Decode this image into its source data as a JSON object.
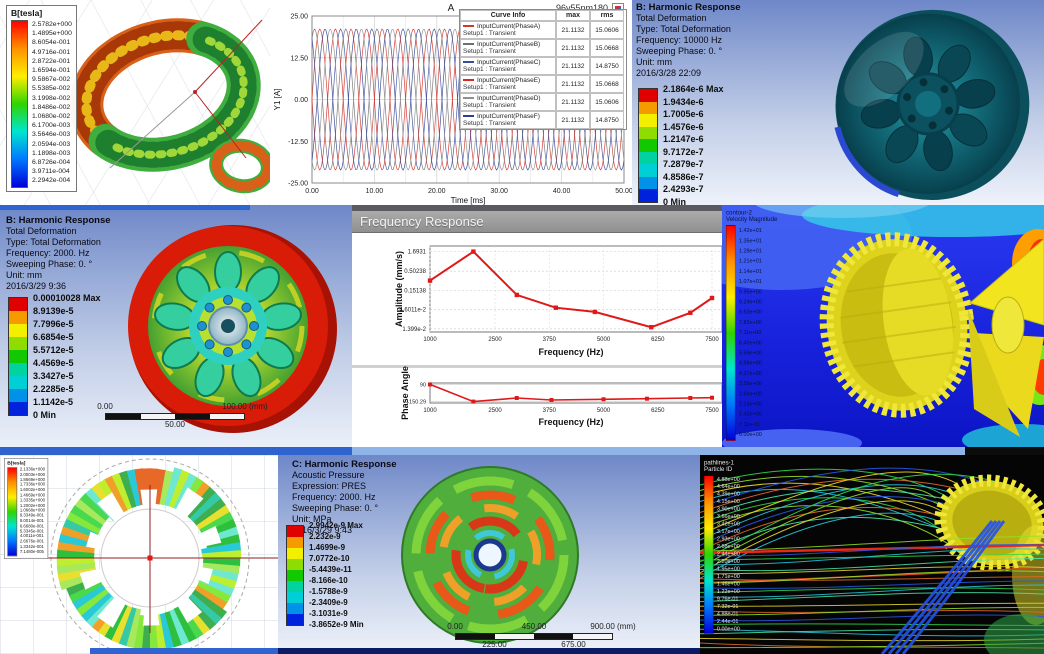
{
  "colors": {
    "jet": [
      "#ff0000",
      "#ff9200",
      "#ffee00",
      "#2fd400",
      "#00e5d0",
      "#0077ff",
      "#0000d8"
    ],
    "ansysBands": [
      "#e10000",
      "#f59b00",
      "#f2ef00",
      "#8fdc00",
      "#12c800",
      "#00d2a0",
      "#00cfd6",
      "#0092e8",
      "#0022dc"
    ],
    "accentBlue": "#2f63d0",
    "plotRed": "#e01818"
  },
  "panelA": {
    "legendTitle": "B[tesla]",
    "legendValues": [
      "2.5782e+000",
      "1.4895e+000",
      "8.6054e-001",
      "4.9716e-001",
      "2.8722e-001",
      "1.6594e-001",
      "9.5867e-002",
      "5.5385e-002",
      "3.1998e-002",
      "1.8486e-002",
      "1.0680e-002",
      "6.1700e-003",
      "3.5646e-003",
      "2.0594e-003",
      "1.1898e-003",
      "6.8726e-004",
      "3.9711e-004",
      "2.2942e-004"
    ]
  },
  "panelB": {
    "title": "A",
    "corner": "96v55nm180",
    "xlabel": "Time [ms]",
    "ylabel": "Y1 [A]",
    "yticks": [
      "25.00",
      "12.50",
      "0.00",
      "-12.50",
      "-25.00"
    ],
    "xticks": [
      "0.00",
      "10.00",
      "20.00",
      "30.00",
      "40.00",
      "50.00"
    ],
    "legendHeader": [
      "Curve Info",
      "max",
      "rms"
    ],
    "legendRows": [
      {
        "name": "InputCurrent(PhaseA)",
        "setup": "Setup1 : Transient",
        "max": "21.1132",
        "rms": "15.0606",
        "color": "#cc3b2a"
      },
      {
        "name": "InputCurrent(PhaseB)",
        "setup": "Setup1 : Transient",
        "max": "21.1132",
        "rms": "15.0668",
        "color": "#6f6f6f"
      },
      {
        "name": "InputCurrent(PhaseC)",
        "setup": "Setup1 : Transient",
        "max": "21.1132",
        "rms": "14.8750",
        "color": "#3a4e9e"
      },
      {
        "name": "InputCurrent(PhaseE)",
        "setup": "Setup1 : Transient",
        "max": "21.1132",
        "rms": "15.0668",
        "color": "#d42a2a"
      },
      {
        "name": "InputCurrent(PhaseD)",
        "setup": "Setup1 : Transient",
        "max": "21.1132",
        "rms": "15.0606",
        "color": "#8f8f8f"
      },
      {
        "name": "InputCurrent(PhaseF)",
        "setup": "Setup1 : Transient",
        "max": "21.1132",
        "rms": "14.8750",
        "color": "#2f3f8f"
      }
    ]
  },
  "panelC": {
    "header": [
      "B: Harmonic Response",
      "Total Deformation",
      "Type: Total Deformation",
      "Frequency: 10000 Hz",
      "Sweeping Phase: 0. °",
      "Unit: mm",
      "2016/3/28 22:09"
    ],
    "legendValues": [
      "2.1864e-6 Max",
      "1.9434e-6",
      "1.7005e-6",
      "1.4576e-6",
      "1.2147e-6",
      "9.7172e-7",
      "7.2879e-7",
      "4.8586e-7",
      "2.4293e-7",
      "0 Min"
    ]
  },
  "panelD": {
    "header": [
      "B: Harmonic Response",
      "Total Deformation",
      "Type: Total Deformation",
      "Frequency: 2000. Hz",
      "Sweeping Phase: 0. °",
      "Unit: mm",
      "2016/3/29 9:36"
    ],
    "legendValues": [
      "0.00010028 Max",
      "8.9139e-5",
      "7.7996e-5",
      "6.6854e-5",
      "5.5712e-5",
      "4.4569e-5",
      "3.3427e-5",
      "2.2285e-5",
      "1.1142e-5",
      "0 Min"
    ],
    "rulerTop": [
      "0.00",
      "100.00 (mm)"
    ],
    "rulerBottom": [
      "50.00"
    ]
  },
  "panelE": {
    "title": "Frequency Response",
    "amp": {
      "ylabel": "Amplitude (mm/s)",
      "xlabel": "Frequency (Hz)",
      "yticks": [
        "1.6931",
        "0.50238",
        "0.15138",
        "4.6011e-2",
        "1.399e-2"
      ],
      "xticks": [
        "1000",
        "2500",
        "3750",
        "5000",
        "6250",
        "7500"
      ]
    },
    "phase": {
      "ylabel": "Phase Angle",
      "xlabel": "Frequency (Hz)",
      "yticks": [
        "90",
        "-150.29"
      ],
      "xticks": [
        "1000",
        "2500",
        "3750",
        "5000",
        "6250",
        "7500"
      ]
    }
  },
  "panelF": {
    "legendTitle": [
      "contour-2",
      "Velocity Magnitude"
    ],
    "legendValues": [
      "1.42e+01",
      "1.35e+01",
      "1.28e+01",
      "1.21e+01",
      "1.14e+01",
      "1.07e+01",
      "9.96e+00",
      "9.24e+00",
      "8.53e+00",
      "7.82e+00",
      "7.11e+00",
      "6.40e+00",
      "5.69e+00",
      "4.98e+00",
      "4.27e+00",
      "3.56e+00",
      "2.84e+00",
      "2.13e+00",
      "1.42e+00",
      "7.11e-01",
      "0.00e+00"
    ]
  },
  "panelG": {
    "legendTitle": "B[tesla]",
    "legendValues": [
      "2.1336e+000",
      "2.0003e+000",
      "1.8669e+000",
      "1.7336e+000",
      "1.6002e+000",
      "1.4669e+000",
      "1.3335e+000",
      "1.2002e+000",
      "1.0668e+000",
      "9.3349e-001",
      "8.0014e-001",
      "6.6680e-001",
      "5.3345e-001",
      "4.0011e-001",
      "2.6676e-001",
      "1.3342e-001",
      "7.1480e-005"
    ]
  },
  "panelH": {
    "header": [
      "C: Harmonic Response",
      "Acoustic Pressure",
      "Expression: PRES",
      "Frequency: 2000. Hz",
      "Sweeping Phase: 0. °",
      "Unit: MPa",
      "2016/3/29 9:43"
    ],
    "legendValues": [
      "2.9942e-9 Max",
      "2.232e-9",
      "1.4699e-9",
      "7.0772e-10",
      "-5.4439e-11",
      "-8.166e-10",
      "-1.5788e-9",
      "-2.3409e-9",
      "-3.1031e-9",
      "-3.8652e-9 Min"
    ],
    "rulerTop": [
      "0.00",
      "450.00",
      "900.00 (mm)"
    ],
    "rulerBottom": [
      "225.00",
      "675.00"
    ]
  },
  "panelI": {
    "legendTitle": [
      "pathlines-1",
      "Particle ID"
    ],
    "legendValues": [
      "4.88e+00",
      "4.64e+00",
      "4.39e+00",
      "4.15e+00",
      "3.90e+00",
      "3.66e+00",
      "3.42e+00",
      "3.17e+00",
      "2.93e+00",
      "2.68e+00",
      "2.44e+00",
      "2.20e+00",
      "1.95e+00",
      "1.71e+00",
      "1.46e+00",
      "1.22e+00",
      "9.76e-01",
      "7.32e-01",
      "4.88e-01",
      "2.44e-01",
      "0.00e+00"
    ]
  },
  "chart_data": [
    {
      "id": "input-currents",
      "type": "line",
      "title": "A",
      "xlabel": "Time [ms]",
      "ylabel": "Y1 [A]",
      "xlim": [
        0,
        50
      ],
      "ylim": [
        -25,
        25
      ],
      "waveform": "sine",
      "period_ms": 5,
      "amplitude": 21.1132,
      "legend_position": "right",
      "series": [
        {
          "name": "InputCurrent(PhaseA)",
          "phase_deg": 0,
          "max": 21.1132,
          "rms": 15.0606
        },
        {
          "name": "InputCurrent(PhaseB)",
          "phase_deg": 60,
          "max": 21.1132,
          "rms": 15.0668
        },
        {
          "name": "InputCurrent(PhaseC)",
          "phase_deg": 120,
          "max": 21.1132,
          "rms": 14.875
        },
        {
          "name": "InputCurrent(PhaseE)",
          "phase_deg": 180,
          "max": 21.1132,
          "rms": 15.0668
        },
        {
          "name": "InputCurrent(PhaseD)",
          "phase_deg": 240,
          "max": 21.1132,
          "rms": 15.0606
        },
        {
          "name": "InputCurrent(PhaseF)",
          "phase_deg": 300,
          "max": 21.1132,
          "rms": 14.875
        }
      ]
    },
    {
      "id": "freq-amplitude",
      "type": "line",
      "title": "Frequency Response",
      "xlabel": "Frequency (Hz)",
      "ylabel": "Amplitude (mm/s)",
      "yscale": "log",
      "xlim": [
        1000,
        7500
      ],
      "yticks": [
        1.6931,
        0.50238,
        0.15138,
        0.046011,
        0.01399
      ],
      "xticks": [
        1000,
        2500,
        3750,
        5000,
        6250,
        7500
      ],
      "points": [
        [
          1000,
          0.28
        ],
        [
          2000,
          1.6931
        ],
        [
          3000,
          0.115
        ],
        [
          3900,
          0.052
        ],
        [
          4800,
          0.04
        ],
        [
          6100,
          0.0155
        ],
        [
          7000,
          0.038
        ],
        [
          7500,
          0.095
        ]
      ]
    },
    {
      "id": "freq-phase",
      "type": "line",
      "xlabel": "Frequency (Hz)",
      "ylabel": "Phase Angle",
      "xlim": [
        1000,
        7500
      ],
      "yticks": [
        90,
        -150.29
      ],
      "xticks": [
        1000,
        2500,
        3750,
        5000,
        6250,
        7500
      ],
      "points": [
        [
          1000,
          90
        ],
        [
          2000,
          -150.29
        ],
        [
          3000,
          -100
        ],
        [
          3800,
          -128
        ],
        [
          5000,
          -118
        ],
        [
          6000,
          -110
        ],
        [
          7000,
          -100
        ],
        [
          7500,
          -96
        ]
      ]
    }
  ]
}
